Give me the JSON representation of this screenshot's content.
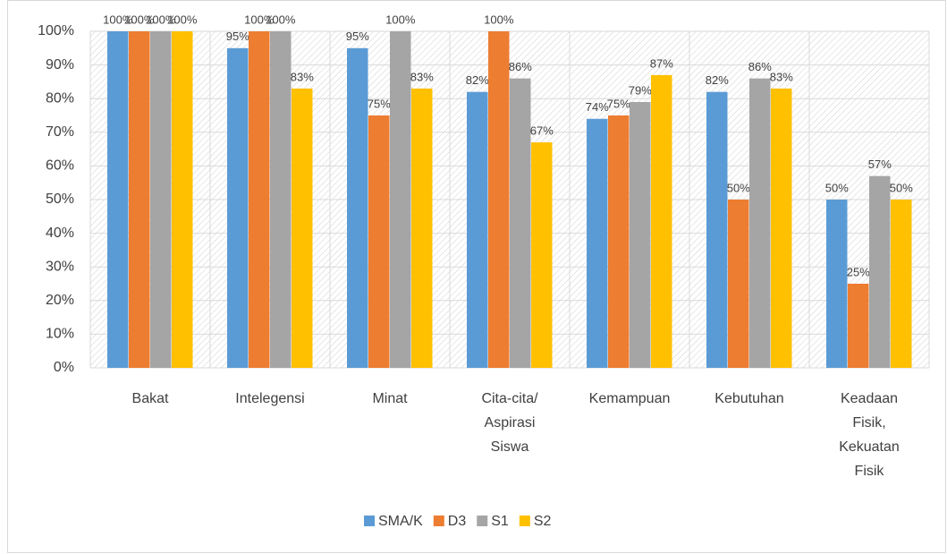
{
  "chart_data": {
    "type": "bar",
    "categories": [
      "Bakat",
      "Intelegensi",
      "Minat",
      "Cita-cita/ Aspirasi Siswa",
      "Kemampuan",
      "Kebutuhan",
      "Keadaan Fisik, Kekuatan Fisik"
    ],
    "series": [
      {
        "name": "SMA/K",
        "color": "#5b9bd5",
        "values": [
          100,
          95,
          95,
          82,
          74,
          82,
          50
        ],
        "value_labels": [
          "100%",
          "95%",
          "95%",
          "82%",
          "74%",
          "82%",
          "50%"
        ]
      },
      {
        "name": "D3",
        "color": "#ed7d31",
        "values": [
          100,
          100,
          75,
          100,
          75,
          50,
          25
        ],
        "value_labels": [
          "100%",
          "100%",
          "75%",
          "100%",
          "75%",
          "50%",
          "25%"
        ]
      },
      {
        "name": "S1",
        "color": "#a5a5a5",
        "values": [
          100,
          100,
          100,
          86,
          79,
          86,
          57
        ],
        "value_labels": [
          "100%",
          "100%",
          "100%",
          "86%",
          "79%",
          "86%",
          "57%"
        ]
      },
      {
        "name": "S2",
        "color": "#ffc000",
        "values": [
          100,
          83,
          83,
          67,
          87,
          83,
          50
        ],
        "value_labels": [
          "100%",
          "83%",
          "83%",
          "67%",
          "87%",
          "83%",
          "50%"
        ]
      }
    ],
    "ylim": [
      0,
      100
    ],
    "yticks": [
      {
        "value": 0,
        "label": "0%"
      },
      {
        "value": 10,
        "label": "10%"
      },
      {
        "value": 20,
        "label": "20%"
      },
      {
        "value": 30,
        "label": "30%"
      },
      {
        "value": 40,
        "label": "40%"
      },
      {
        "value": 50,
        "label": "50%"
      },
      {
        "value": 60,
        "label": "60%"
      },
      {
        "value": 70,
        "label": "70%"
      },
      {
        "value": 80,
        "label": "80%"
      },
      {
        "value": 90,
        "label": "90%"
      },
      {
        "value": 100,
        "label": "100%"
      }
    ],
    "grid": true,
    "legend": "bottom"
  }
}
